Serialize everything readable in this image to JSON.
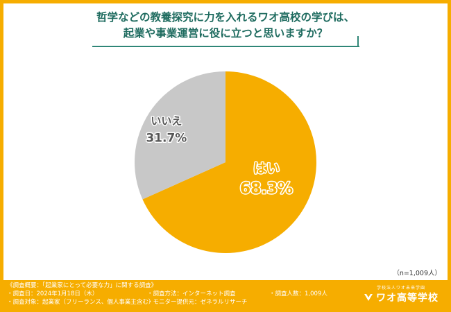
{
  "title": {
    "line1": "哲学などの教養探究に力を入れるワオ高校の学びは、",
    "line2": "起業や事業運営に役に立つと思いますか？"
  },
  "chart_data": {
    "type": "pie",
    "title": "哲学などの教養探究に力を入れるワオ高校の学びは、起業や事業運営に役に立つと思いますか？",
    "slices": [
      {
        "label": "はい",
        "value": 68.3,
        "display": "68.3%",
        "color": "#f6ad00"
      },
      {
        "label": "いいえ",
        "value": 31.7,
        "display": "31.7%",
        "color": "#c8c8c8"
      }
    ],
    "start": "12 o'clock",
    "direction": "clockwise"
  },
  "note": "（n=1,009人）",
  "footer": {
    "heading": "《調査概要：「起業家にとって必要な力」に関する調査》",
    "date": "・調査日：2024年1月18日（木）",
    "target": "・調査対象：起業家（フリーランス、個人事業主含む）",
    "method": "・調査方法：インターネット調査",
    "provider": "・モニター提供元：ゼネラルリサーチ",
    "count": "・調査人数：1,009人",
    "logo_sub": "学校法人ワオ未来学園",
    "logo_main": "ワオ高等学校"
  },
  "colors": {
    "accent": "#f6ad00",
    "title": "#1e6b5f",
    "no": "#c8c8c8"
  }
}
